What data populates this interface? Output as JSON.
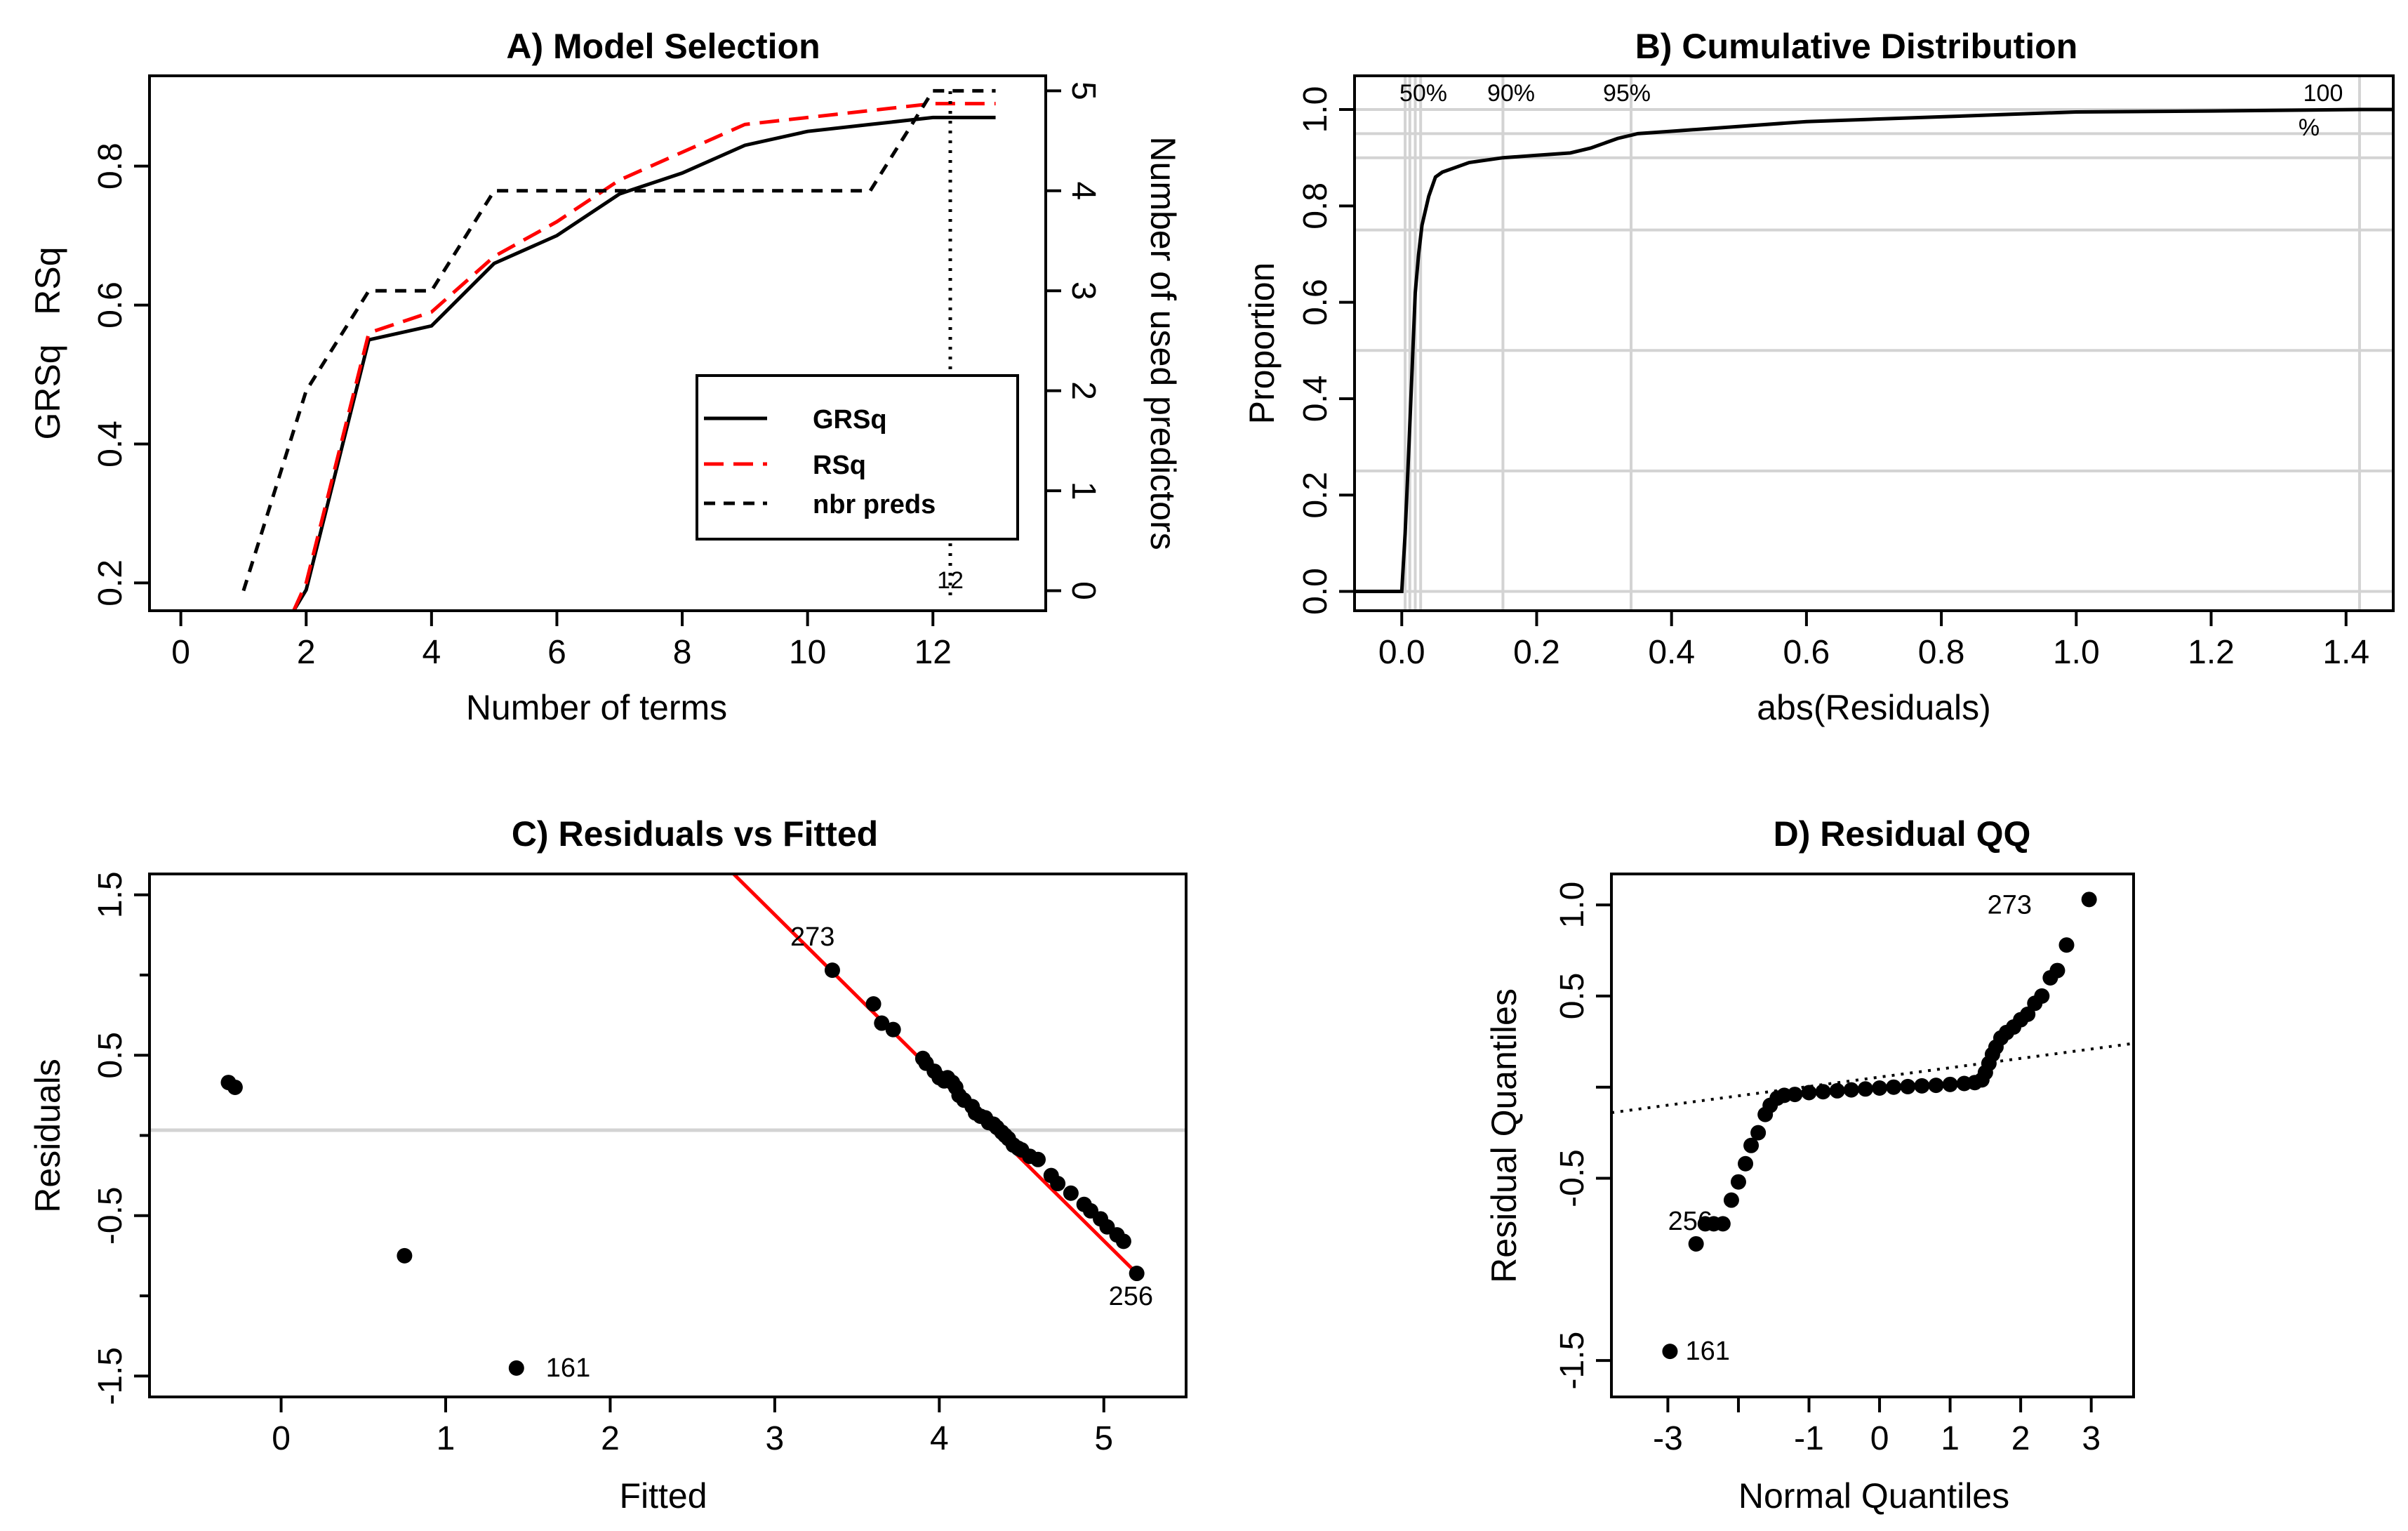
{
  "chart_data": [
    {
      "type": "line",
      "title": "A) Model Selection",
      "xlabel": "Number of terms",
      "ylabel": "GRSq   RSq",
      "y2label": "Number of used predictors",
      "xlim": [
        -0.5,
        13.8
      ],
      "ylim": [
        0.16,
        0.93
      ],
      "y2lim": [
        -0.2,
        5.15
      ],
      "xticks": [
        "0",
        "2",
        "4",
        "6",
        "8",
        "10",
        "12"
      ],
      "yticks": [
        "0.2",
        "0.4",
        "0.6",
        "0.8"
      ],
      "y2ticks": [
        "0",
        "1",
        "2",
        "3",
        "4",
        "5"
      ],
      "selected_terms": 12,
      "selected_label": "12",
      "series": [
        {
          "name": "GRSq",
          "color": "#000000",
          "dash": "solid",
          "x": [
            1.8,
            2,
            3,
            4,
            5,
            6,
            7,
            8,
            9,
            10,
            11,
            12,
            13
          ],
          "values": [
            0.16,
            0.19,
            0.55,
            0.57,
            0.66,
            0.7,
            0.76,
            0.79,
            0.83,
            0.85,
            0.86,
            0.87,
            0.87
          ]
        },
        {
          "name": "RSq",
          "color": "#ff0000",
          "dash": "dashed",
          "x": [
            1.8,
            2,
            3,
            4,
            5,
            6,
            7,
            8,
            9,
            10,
            11,
            12,
            13
          ],
          "values": [
            0.16,
            0.2,
            0.56,
            0.59,
            0.67,
            0.72,
            0.78,
            0.82,
            0.86,
            0.87,
            0.88,
            0.89,
            0.89
          ]
        },
        {
          "name": "nbr preds",
          "color": "#000000",
          "dash": "dashed",
          "axis": "right",
          "x": [
            1,
            2,
            3,
            4,
            5,
            6,
            7,
            8,
            9,
            10,
            11,
            12,
            13
          ],
          "values": [
            0,
            2,
            3,
            3,
            4,
            4,
            4,
            4,
            4,
            4,
            4,
            5,
            5
          ]
        }
      ],
      "legend": [
        "GRSq",
        "RSq",
        "nbr preds"
      ]
    },
    {
      "type": "line",
      "title": "B) Cumulative Distribution",
      "xlabel": "abs(Residuals)",
      "ylabel": "Proportion",
      "xlim": [
        -0.07,
        1.47
      ],
      "ylim": [
        -0.04,
        1.07
      ],
      "xticks": [
        "0.0",
        "0.2",
        "0.4",
        "0.6",
        "0.8",
        "1.0",
        "1.2",
        "1.4"
      ],
      "yticks": [
        "0.0",
        "0.2",
        "0.4",
        "0.6",
        "0.8",
        "1.0"
      ],
      "grid_y": [
        0,
        0.25,
        0.5,
        0.75,
        0.9,
        0.95,
        1.0
      ],
      "grid_x": [
        0.005,
        0.012,
        0.02,
        0.028,
        0.15,
        0.34,
        1.42
      ],
      "quantile_labels": [
        "50%",
        "90%",
        "95%",
        "100",
        "%"
      ],
      "x": [
        -0.07,
        0.0,
        0.005,
        0.01,
        0.015,
        0.02,
        0.025,
        0.03,
        0.04,
        0.05,
        0.06,
        0.08,
        0.1,
        0.15,
        0.2,
        0.25,
        0.28,
        0.32,
        0.35,
        0.4,
        0.5,
        0.6,
        0.7,
        0.8,
        0.9,
        1.0,
        1.2,
        1.42,
        1.47
      ],
      "values": [
        0.0,
        0.0,
        0.12,
        0.28,
        0.45,
        0.62,
        0.7,
        0.76,
        0.82,
        0.86,
        0.87,
        0.88,
        0.89,
        0.9,
        0.905,
        0.91,
        0.92,
        0.94,
        0.95,
        0.955,
        0.965,
        0.975,
        0.98,
        0.985,
        0.99,
        0.995,
        0.997,
        1.0,
        1.0
      ]
    },
    {
      "type": "scatter",
      "title": "C) Residuals vs Fitted",
      "xlabel": "Fitted",
      "ylabel": "Residuals",
      "xlim": [
        -0.8,
        5.5
      ],
      "ylim": [
        -1.63,
        1.63
      ],
      "xticks": [
        "0",
        "1",
        "2",
        "3",
        "4",
        "5"
      ],
      "yticks": [
        "-1.5",
        "-0.5",
        "0.5",
        "1.5"
      ],
      "points": [
        [
          -0.32,
          0.33
        ],
        [
          -0.28,
          0.3
        ],
        [
          0.75,
          -0.75
        ],
        [
          1.43,
          -1.45
        ],
        [
          3.35,
          1.03
        ],
        [
          3.6,
          0.82
        ],
        [
          3.65,
          0.7
        ],
        [
          3.72,
          0.66
        ],
        [
          3.9,
          0.48
        ],
        [
          3.92,
          0.45
        ],
        [
          3.97,
          0.4
        ],
        [
          4.0,
          0.36
        ],
        [
          4.03,
          0.34
        ],
        [
          4.05,
          0.36
        ],
        [
          4.08,
          0.33
        ],
        [
          4.1,
          0.3
        ],
        [
          4.12,
          0.25
        ],
        [
          4.15,
          0.22
        ],
        [
          4.2,
          0.18
        ],
        [
          4.22,
          0.14
        ],
        [
          4.25,
          0.12
        ],
        [
          4.28,
          0.11
        ],
        [
          4.3,
          0.08
        ],
        [
          4.33,
          0.07
        ],
        [
          4.35,
          0.05
        ],
        [
          4.38,
          0.02
        ],
        [
          4.4,
          0.0
        ],
        [
          4.42,
          -0.02
        ],
        [
          4.45,
          -0.06
        ],
        [
          4.48,
          -0.08
        ],
        [
          4.5,
          -0.09
        ],
        [
          4.55,
          -0.13
        ],
        [
          4.6,
          -0.15
        ],
        [
          4.68,
          -0.25
        ],
        [
          4.72,
          -0.3
        ],
        [
          4.8,
          -0.36
        ],
        [
          4.88,
          -0.43
        ],
        [
          4.92,
          -0.47
        ],
        [
          4.98,
          -0.52
        ],
        [
          5.02,
          -0.57
        ],
        [
          5.08,
          -0.62
        ],
        [
          5.12,
          -0.66
        ],
        [
          5.2,
          -0.86
        ]
      ],
      "labels": [
        {
          "text": "273",
          "x": 3.35,
          "y": 1.03
        },
        {
          "text": "256",
          "x": 5.2,
          "y": -0.86
        },
        {
          "text": "161",
          "x": 1.43,
          "y": -1.45
        }
      ],
      "fit_line": {
        "x": [
          2.75,
          5.2
        ],
        "values": [
          1.63,
          -0.86
        ]
      },
      "hline": 0
    },
    {
      "type": "scatter",
      "title": "D) Residual QQ",
      "xlabel": "Normal Quantiles",
      "ylabel": "Residual Quantiles",
      "xlim": [
        -3.8,
        3.6
      ],
      "ylim": [
        -1.7,
        1.17
      ],
      "xticks": [
        "-3",
        "-1",
        "0",
        "1",
        "2",
        "3"
      ],
      "xtick_values": [
        -3,
        -1,
        0,
        1,
        2,
        3
      ],
      "minor_xticks": [
        -2
      ],
      "yticks": [
        "-1.5",
        "-0.5",
        "0.5",
        "1.0"
      ],
      "ytick_values": [
        -1.5,
        -0.5,
        0.5,
        1.0
      ],
      "minor_yticks": [
        0
      ],
      "points": [
        [
          -2.97,
          -1.45
        ],
        [
          -2.6,
          -0.86
        ],
        [
          -2.47,
          -0.75
        ],
        [
          -2.35,
          -0.75
        ],
        [
          -2.22,
          -0.75
        ],
        [
          -2.1,
          -0.62
        ],
        [
          -2.0,
          -0.52
        ],
        [
          -1.9,
          -0.42
        ],
        [
          -1.82,
          -0.32
        ],
        [
          -1.72,
          -0.25
        ],
        [
          -1.62,
          -0.15
        ],
        [
          -1.55,
          -0.1
        ],
        [
          -1.45,
          -0.06
        ],
        [
          -1.35,
          -0.045
        ],
        [
          -1.2,
          -0.04
        ],
        [
          -1.0,
          -0.03
        ],
        [
          -0.8,
          -0.025
        ],
        [
          -0.6,
          -0.02
        ],
        [
          -0.4,
          -0.015
        ],
        [
          -0.2,
          -0.01
        ],
        [
          0.0,
          -0.005
        ],
        [
          0.2,
          0.0
        ],
        [
          0.4,
          0.003
        ],
        [
          0.6,
          0.007
        ],
        [
          0.8,
          0.01
        ],
        [
          1.0,
          0.015
        ],
        [
          1.2,
          0.02
        ],
        [
          1.35,
          0.025
        ],
        [
          1.45,
          0.04
        ],
        [
          1.5,
          0.08
        ],
        [
          1.55,
          0.13
        ],
        [
          1.6,
          0.18
        ],
        [
          1.65,
          0.22
        ],
        [
          1.72,
          0.27
        ],
        [
          1.8,
          0.3
        ],
        [
          1.9,
          0.33
        ],
        [
          2.0,
          0.37
        ],
        [
          2.1,
          0.4
        ],
        [
          2.2,
          0.46
        ],
        [
          2.3,
          0.5
        ],
        [
          2.42,
          0.6
        ],
        [
          2.52,
          0.64
        ],
        [
          2.65,
          0.78
        ],
        [
          2.97,
          1.03
        ]
      ],
      "labels": [
        {
          "text": "273",
          "x": 2.97,
          "y": 1.03
        },
        {
          "text": "256",
          "x": -2.6,
          "y": -0.86
        },
        {
          "text": "161",
          "x": -2.97,
          "y": -1.45
        }
      ],
      "ref_line": {
        "x": [
          -3.8,
          3.6
        ],
        "values": [
          -0.14,
          0.24
        ]
      }
    }
  ]
}
